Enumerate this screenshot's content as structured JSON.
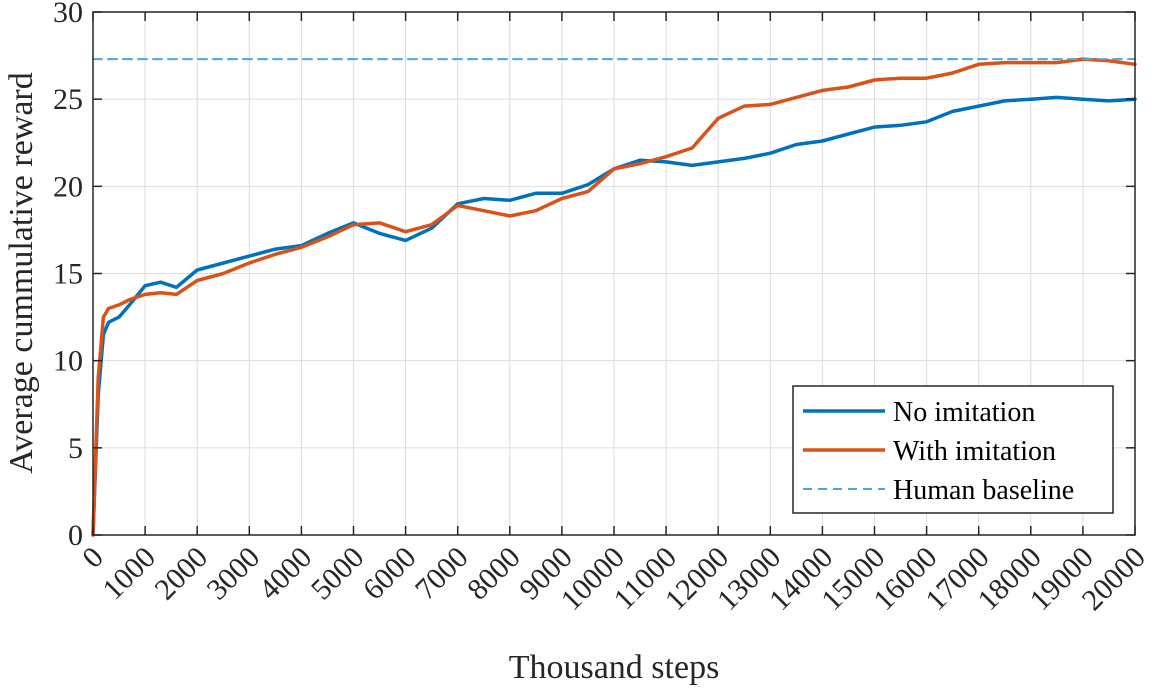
{
  "chart_data": {
    "type": "line",
    "title": "",
    "xlabel": "Thousand steps",
    "ylabel": "Average cummulative reward",
    "xlim": [
      0,
      20000
    ],
    "ylim": [
      0,
      30
    ],
    "x_ticks": [
      "0",
      "1000",
      "2000",
      "3000",
      "4000",
      "5000",
      "6000",
      "7000",
      "8000",
      "9000",
      "10000",
      "11000",
      "12000",
      "13000",
      "14000",
      "15000",
      "16000",
      "17000",
      "18000",
      "19000",
      "20000"
    ],
    "y_ticks": [
      "0",
      "5",
      "10",
      "15",
      "20",
      "25",
      "30"
    ],
    "grid": true,
    "legend_position": "bottom-right",
    "x": [
      0,
      100,
      200,
      300,
      500,
      700,
      1000,
      1300,
      1600,
      2000,
      2500,
      3000,
      3500,
      4000,
      4500,
      5000,
      5500,
      6000,
      6500,
      7000,
      7500,
      8000,
      8500,
      9000,
      9500,
      10000,
      10500,
      11000,
      11500,
      12000,
      12500,
      13000,
      13500,
      14000,
      14500,
      15000,
      15500,
      16000,
      16500,
      17000,
      17500,
      18000,
      18500,
      19000,
      19500,
      20000
    ],
    "series": [
      {
        "name": "No imitation",
        "color": "#0072BD",
        "style": "solid",
        "values": [
          0,
          8,
          11.5,
          12.2,
          12.5,
          13.2,
          14.3,
          14.5,
          14.2,
          15.2,
          15.6,
          16.0,
          16.4,
          16.6,
          17.3,
          17.9,
          17.3,
          16.9,
          17.6,
          19.0,
          19.3,
          19.2,
          19.6,
          19.6,
          20.1,
          21.0,
          21.5,
          21.4,
          21.2,
          21.4,
          21.6,
          21.9,
          22.4,
          22.6,
          23.0,
          23.4,
          23.5,
          23.7,
          24.3,
          24.6,
          24.9,
          25.0,
          25.1,
          25.0,
          24.9,
          25.0
        ]
      },
      {
        "name": "With imitation",
        "color": "#D95319",
        "style": "solid",
        "values": [
          0,
          9,
          12.5,
          13.0,
          13.2,
          13.5,
          13.8,
          13.9,
          13.8,
          14.6,
          15.0,
          15.6,
          16.1,
          16.5,
          17.1,
          17.8,
          17.9,
          17.4,
          17.8,
          18.9,
          18.6,
          18.3,
          18.6,
          19.3,
          19.7,
          21.0,
          21.3,
          21.7,
          22.2,
          23.9,
          24.6,
          24.7,
          25.1,
          25.5,
          25.7,
          26.1,
          26.2,
          26.2,
          26.5,
          27.0,
          27.1,
          27.1,
          27.1,
          27.3,
          27.2,
          27.0
        ]
      },
      {
        "name": "Human baseline",
        "color": "#4DA6DF",
        "style": "dashed",
        "values": [
          27.3,
          27.3,
          27.3,
          27.3,
          27.3,
          27.3,
          27.3,
          27.3,
          27.3,
          27.3,
          27.3,
          27.3,
          27.3,
          27.3,
          27.3,
          27.3,
          27.3,
          27.3,
          27.3,
          27.3,
          27.3,
          27.3,
          27.3,
          27.3,
          27.3,
          27.3,
          27.3,
          27.3,
          27.3,
          27.3,
          27.3,
          27.3,
          27.3,
          27.3,
          27.3,
          27.3,
          27.3,
          27.3,
          27.3,
          27.3,
          27.3,
          27.3,
          27.3,
          27.3,
          27.3,
          27.3
        ]
      }
    ]
  }
}
